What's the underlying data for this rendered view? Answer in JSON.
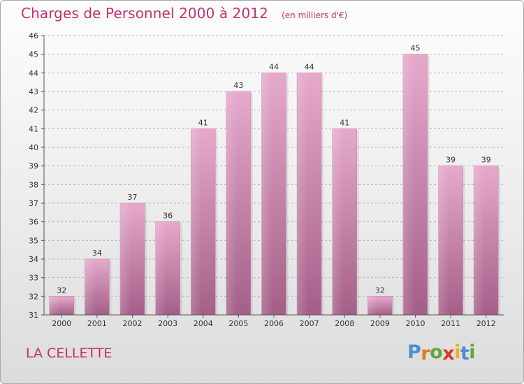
{
  "chart_data": {
    "type": "bar",
    "title": "Charges de Personnel 2000 à 2012",
    "unit": "(en milliers d'€)",
    "categories": [
      "2000",
      "2001",
      "2002",
      "2003",
      "2004",
      "2005",
      "2006",
      "2007",
      "2008",
      "2009",
      "2010",
      "2011",
      "2012"
    ],
    "values": [
      32,
      34,
      37,
      36,
      41,
      43,
      44,
      44,
      41,
      32,
      45,
      39,
      39
    ],
    "ylim": [
      31,
      46
    ],
    "yticks": [
      31,
      32,
      33,
      34,
      35,
      36,
      37,
      38,
      39,
      40,
      41,
      42,
      43,
      44,
      45,
      46
    ],
    "grid": "horizontal dashed",
    "bar_color": "#d98fb7"
  },
  "commune": "LA CELLETTE",
  "logo": {
    "letters": [
      "P",
      "r",
      "o",
      "x",
      "i",
      "t",
      "i"
    ],
    "colors": [
      "#4a8fd0",
      "#e07a1c",
      "#59a93a",
      "#d8392c",
      "#e8b520",
      "#4a8fd0",
      "#59a93a"
    ]
  }
}
